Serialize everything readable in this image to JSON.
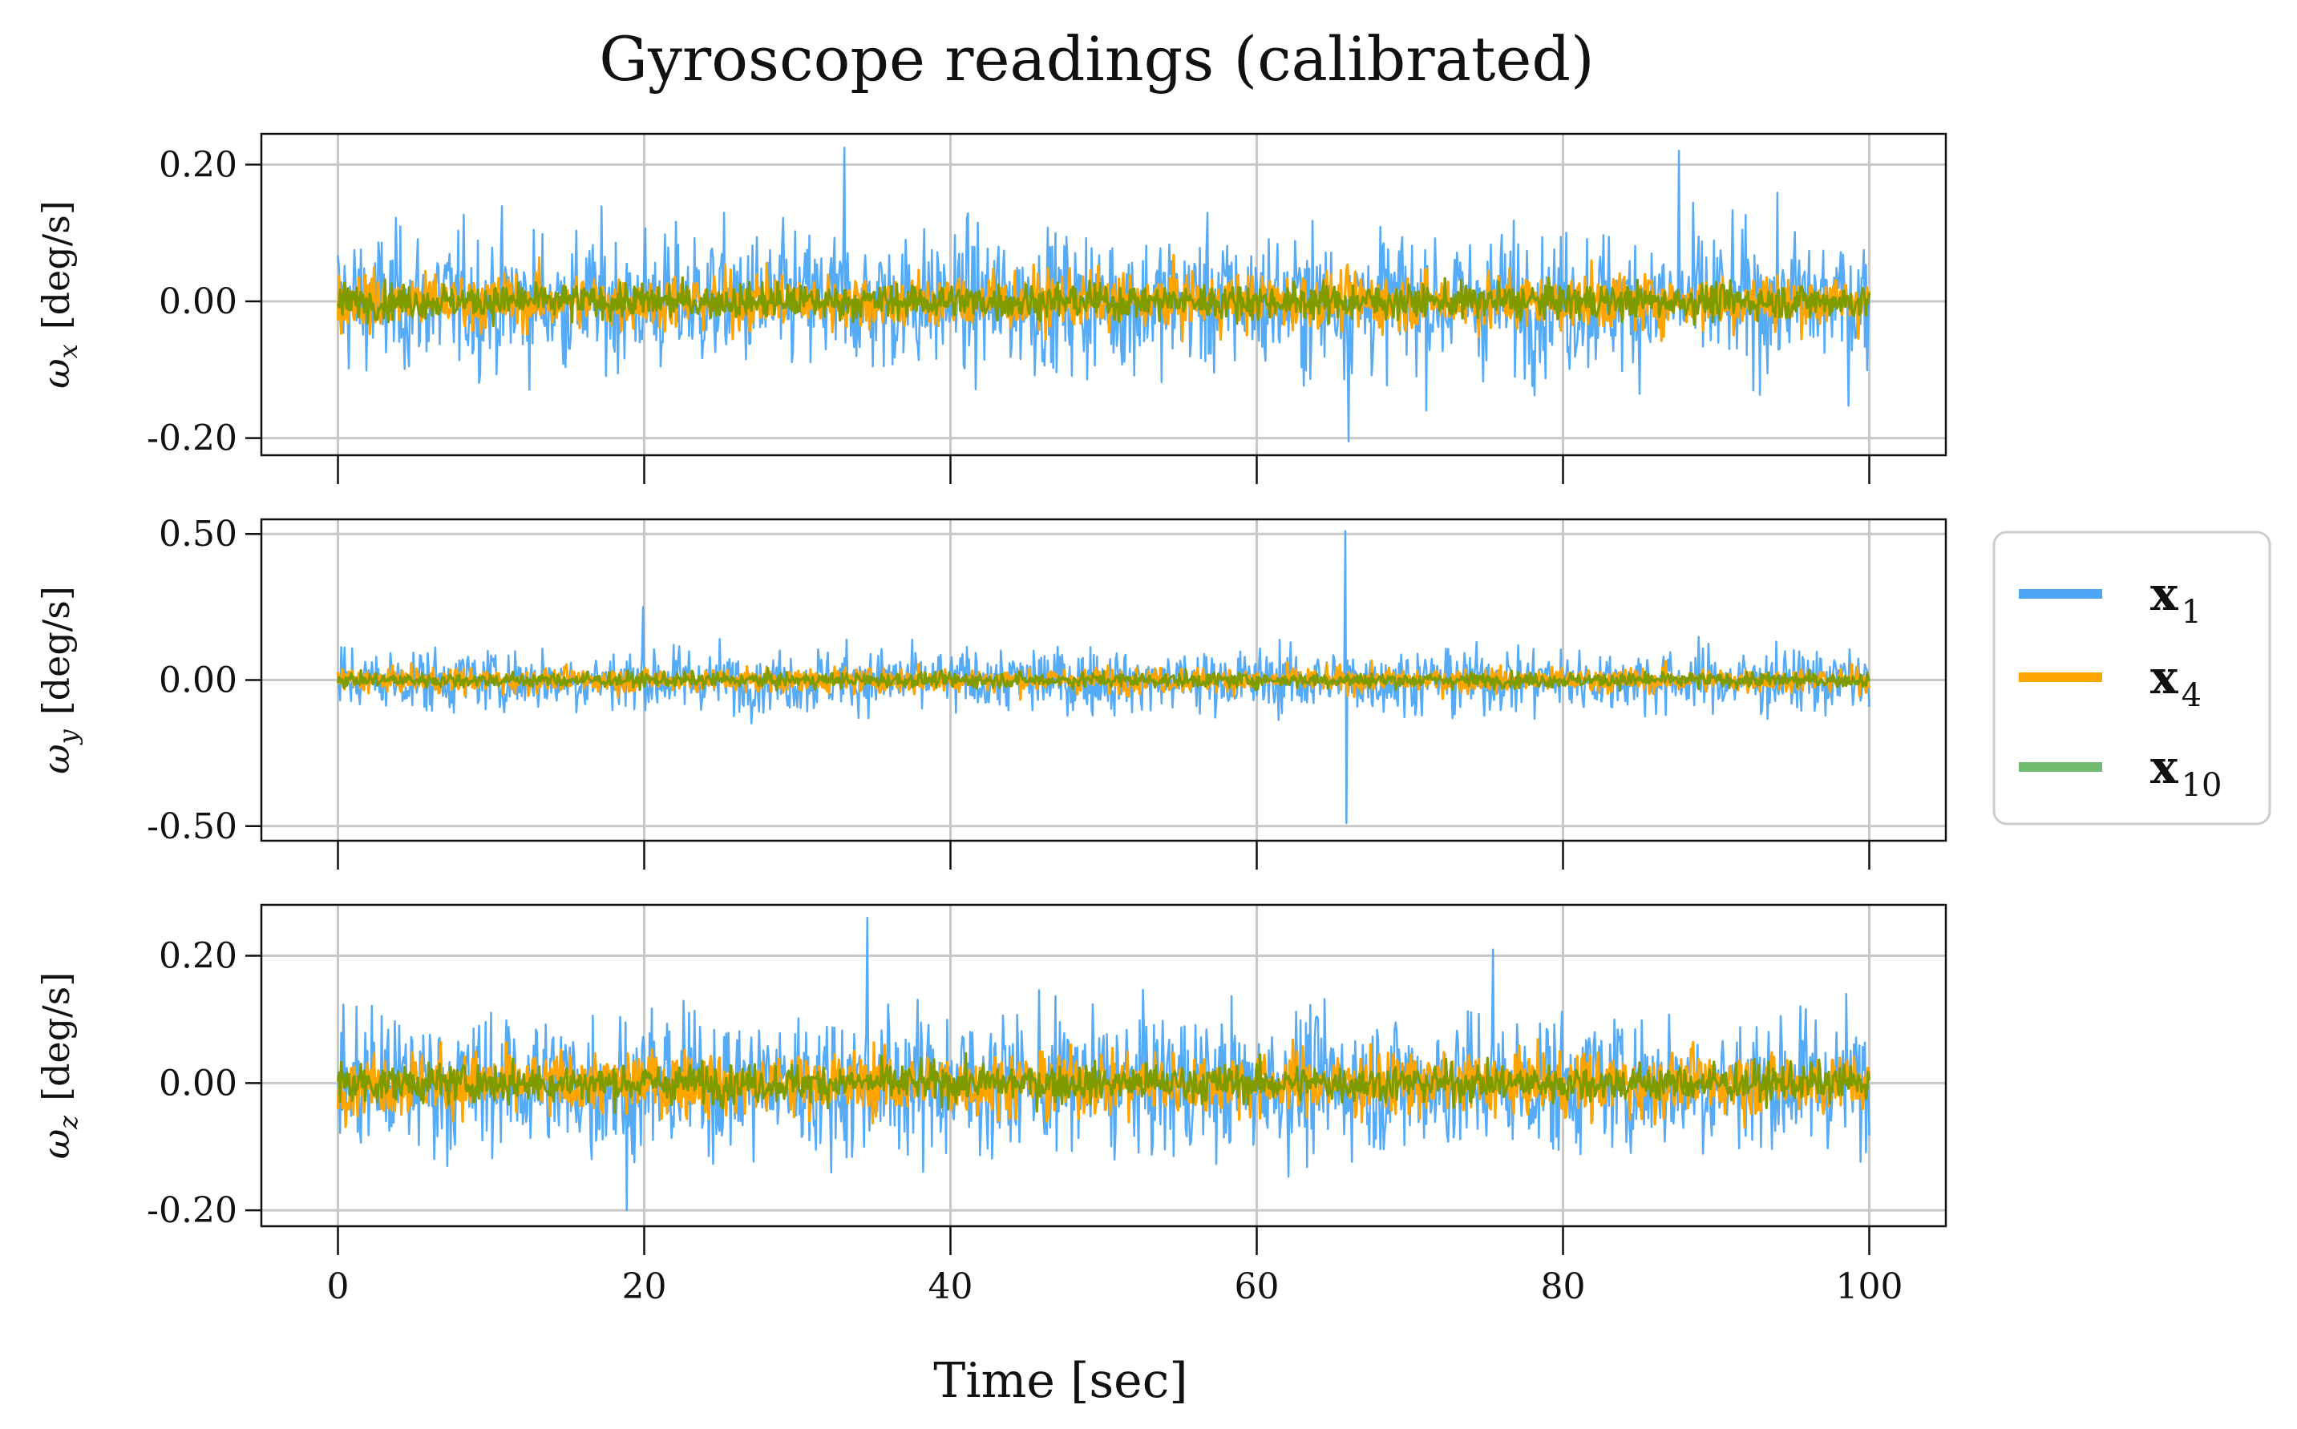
{
  "chart_data": {
    "type": "line",
    "title": "Gyroscope readings (calibrated)",
    "xlabel": "Time [sec]",
    "xlim": [
      -5,
      105
    ],
    "xticks": [
      0,
      20,
      40,
      60,
      80,
      100
    ],
    "xtick_labels": [
      "0",
      "20",
      "40",
      "60",
      "80",
      "100"
    ],
    "grid": true,
    "legend": {
      "placement": "right, outside axes",
      "entries": [
        {
          "series": "x1",
          "label": "x",
          "sub": "1",
          "color": "#4da6f7"
        },
        {
          "series": "x4",
          "label": "x",
          "sub": "4",
          "color": "#ffa500"
        },
        {
          "series": "x10",
          "label": "x",
          "sub": "10",
          "color": "#6fba6f"
        }
      ]
    },
    "panels": [
      {
        "ylabel_sym": "ω",
        "ylabel_sub": "x",
        "ylabel_unit": "[deg/s]",
        "ylim": [
          -0.225,
          0.245
        ],
        "yticks": [
          -0.2,
          0.0,
          0.2
        ],
        "ytick_labels": [
          "-0.20",
          "0.00",
          "0.20"
        ],
        "series": [
          {
            "name": "x1",
            "color": "#4da6f7",
            "t_range": [
              0,
              100
            ],
            "mean": 0.0,
            "typical_amplitude": 0.12,
            "peaks": [
              {
                "t": 33.1,
                "value": 0.225
              },
              {
                "t": 87.6,
                "value": 0.22
              },
              {
                "t": 65.9,
                "value": -0.205
              }
            ]
          },
          {
            "name": "x4",
            "color": "#ffa500",
            "t_range": [
              0,
              100
            ],
            "mean": 0.0,
            "typical_amplitude": 0.05
          },
          {
            "name": "x10",
            "color": "#7f9b00",
            "t_range": [
              0,
              100
            ],
            "mean": 0.0,
            "typical_amplitude": 0.03
          }
        ]
      },
      {
        "ylabel_sym": "ω",
        "ylabel_sub": "y",
        "ylabel_unit": "[deg/s]",
        "ylim": [
          -0.55,
          0.55
        ],
        "yticks": [
          -0.5,
          0.0,
          0.5
        ],
        "ytick_labels": [
          "-0.50",
          "0.00",
          "0.50"
        ],
        "series": [
          {
            "name": "x1",
            "color": "#4da6f7",
            "t_range": [
              0,
              100
            ],
            "mean": 0.0,
            "typical_amplitude": 0.13,
            "peaks": [
              {
                "t": 65.8,
                "value": 0.51
              },
              {
                "t": 65.8,
                "value": -0.49
              },
              {
                "t": 19.9,
                "value": 0.25
              }
            ]
          },
          {
            "name": "x4",
            "color": "#ffa500",
            "t_range": [
              0,
              100
            ],
            "mean": 0.0,
            "typical_amplitude": 0.05
          },
          {
            "name": "x10",
            "color": "#7f9b00",
            "t_range": [
              0,
              100
            ],
            "mean": 0.0,
            "typical_amplitude": 0.03
          }
        ]
      },
      {
        "ylabel_sym": "ω",
        "ylabel_sub": "z",
        "ylabel_unit": "[deg/s]",
        "ylim": [
          -0.225,
          0.28
        ],
        "yticks": [
          -0.2,
          0.0,
          0.2
        ],
        "ytick_labels": [
          "-0.20",
          "0.00",
          "0.20"
        ],
        "series": [
          {
            "name": "x1",
            "color": "#4da6f7",
            "t_range": [
              0,
              100
            ],
            "mean": 0.0,
            "typical_amplitude": 0.13,
            "peaks": [
              {
                "t": 34.6,
                "value": 0.26
              },
              {
                "t": 18.8,
                "value": -0.2
              },
              {
                "t": 75.4,
                "value": 0.21
              }
            ]
          },
          {
            "name": "x4",
            "color": "#ffa500",
            "t_range": [
              0,
              100
            ],
            "mean": 0.0,
            "typical_amplitude": 0.06
          },
          {
            "name": "x10",
            "color": "#7f9b00",
            "t_range": [
              0,
              100
            ],
            "mean": 0.0,
            "typical_amplitude": 0.035
          }
        ]
      }
    ]
  }
}
